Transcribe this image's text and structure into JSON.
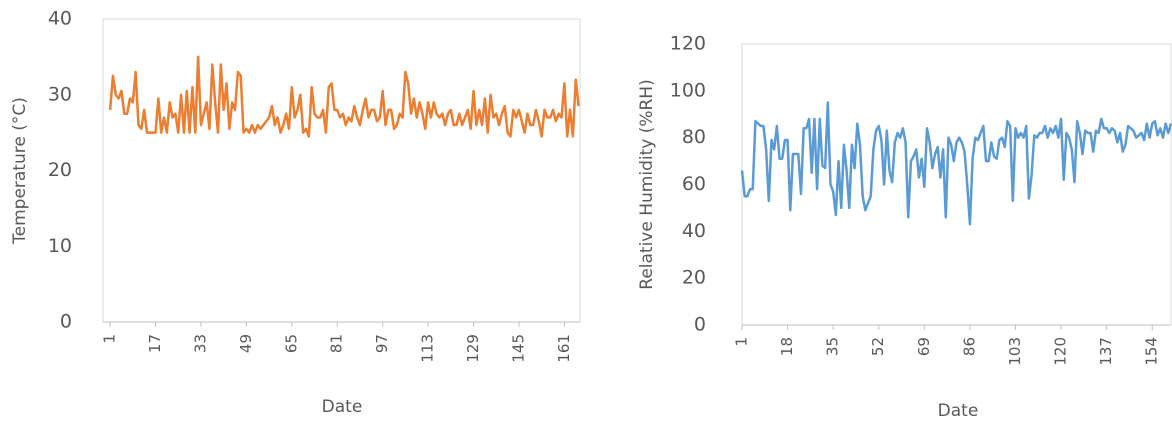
{
  "chart_data": [
    {
      "type": "line",
      "y_label": "Temperature (°C)",
      "x_label": "Date",
      "xlim": [
        -1.5,
        166.5
      ],
      "xticks": [
        1,
        17,
        33,
        49,
        65,
        81,
        97,
        113,
        129,
        145,
        161
      ],
      "ylim": [
        0,
        40
      ],
      "yticks": [
        0,
        10,
        20,
        30,
        40
      ],
      "x": [
        1,
        2,
        3,
        4,
        5,
        6,
        7,
        8,
        9,
        10,
        11,
        12,
        13,
        14,
        15,
        16,
        17,
        18,
        19,
        20,
        21,
        22,
        23,
        24,
        25,
        26,
        27,
        28,
        29,
        30,
        31,
        32,
        33,
        34,
        35,
        36,
        37,
        38,
        39,
        40,
        41,
        42,
        43,
        44,
        45,
        46,
        47,
        48,
        49,
        50,
        51,
        52,
        53,
        54,
        55,
        56,
        57,
        58,
        59,
        60,
        61,
        62,
        63,
        64,
        65,
        66,
        67,
        68,
        69,
        70,
        71,
        72,
        73,
        74,
        75,
        76,
        77,
        78,
        79,
        80,
        81,
        82,
        83,
        84,
        85,
        86,
        87,
        88,
        89,
        90,
        91,
        92,
        93,
        94,
        95,
        96,
        97,
        98,
        99,
        100,
        101,
        102,
        103,
        104,
        105,
        106,
        107,
        108,
        109,
        110,
        111,
        112,
        113,
        114,
        115,
        116,
        117,
        118,
        119,
        120,
        121,
        122,
        123,
        124,
        125,
        126,
        127,
        128,
        129,
        130,
        131,
        132,
        133,
        134,
        135,
        136,
        137,
        138,
        139,
        140,
        141,
        142,
        143,
        144,
        145,
        146,
        147,
        148,
        149,
        150,
        151,
        152,
        153,
        154,
        155,
        156,
        157,
        158,
        159,
        160,
        161,
        162,
        163,
        164,
        165,
        166
      ],
      "series": [
        {
          "color": "#ed7d31",
          "values": [
            28,
            32.5,
            30,
            29.5,
            30.5,
            27.5,
            27.5,
            29.5,
            29,
            33,
            26,
            25.5,
            28,
            25,
            25,
            25,
            25,
            29.5,
            25,
            27,
            25,
            29,
            27,
            27.5,
            25,
            30,
            25,
            30.5,
            25,
            31,
            25,
            35,
            26,
            27.5,
            29,
            25.5,
            34,
            29,
            25,
            34,
            28,
            31.5,
            25.5,
            29,
            28,
            33,
            32.5,
            25,
            25.5,
            25,
            26,
            25,
            26,
            25.5,
            26,
            26.5,
            27,
            28.5,
            26,
            27,
            25,
            26,
            27.5,
            25.5,
            31,
            27,
            28,
            30,
            25,
            25.5,
            24.5,
            31,
            27.5,
            27,
            27,
            28,
            25,
            31,
            31.5,
            28,
            28,
            27,
            27.5,
            26,
            27,
            26.5,
            28.5,
            27,
            26,
            28,
            29.5,
            27,
            28,
            28,
            26.5,
            27,
            30.5,
            26,
            28,
            28,
            25.5,
            26,
            27.5,
            27,
            33,
            31.5,
            27.5,
            29.5,
            27,
            29,
            27.5,
            25.5,
            29,
            27,
            29,
            27.5,
            27,
            27.5,
            26,
            27.5,
            28,
            26,
            26,
            27.5,
            26,
            27,
            28,
            25.5,
            30.5,
            26,
            28,
            26,
            29.5,
            25,
            30,
            27,
            27.5,
            26,
            27.5,
            28.5,
            25,
            24.5,
            28,
            27,
            28,
            26.5,
            25,
            27.5,
            26,
            26,
            28,
            26.5,
            24.5,
            28,
            27,
            27,
            28,
            26.5,
            27.5,
            27,
            31.5,
            24.5,
            28,
            24.5,
            32,
            28.5
          ]
        }
      ]
    },
    {
      "type": "line",
      "y_label": "Relative Humidity (%RH)",
      "x_label": "Date",
      "xlim": [
        1,
        161
      ],
      "xticks": [
        1,
        18,
        35,
        52,
        69,
        86,
        103,
        120,
        137,
        154
      ],
      "ylim": [
        0,
        120
      ],
      "yticks": [
        0,
        20,
        40,
        60,
        80,
        100,
        120
      ],
      "x": [
        1,
        2,
        3,
        4,
        5,
        6,
        7,
        8,
        9,
        10,
        11,
        12,
        13,
        14,
        15,
        16,
        17,
        18,
        19,
        20,
        21,
        22,
        23,
        24,
        25,
        26,
        27,
        28,
        29,
        30,
        31,
        32,
        33,
        34,
        35,
        36,
        37,
        38,
        39,
        40,
        41,
        42,
        43,
        44,
        45,
        46,
        47,
        48,
        49,
        50,
        51,
        52,
        53,
        54,
        55,
        56,
        57,
        58,
        59,
        60,
        61,
        62,
        63,
        64,
        65,
        66,
        67,
        68,
        69,
        70,
        71,
        72,
        73,
        74,
        75,
        76,
        77,
        78,
        79,
        80,
        81,
        82,
        83,
        84,
        85,
        86,
        87,
        88,
        89,
        90,
        91,
        92,
        93,
        94,
        95,
        96,
        97,
        98,
        99,
        100,
        101,
        102,
        103,
        104,
        105,
        106,
        107,
        108,
        109,
        110,
        111,
        112,
        113,
        114,
        115,
        116,
        117,
        118,
        119,
        120,
        121,
        122,
        123,
        124,
        125,
        126,
        127,
        128,
        129,
        130,
        131,
        132,
        133,
        134,
        135,
        136,
        137,
        138,
        139,
        140,
        141,
        142,
        143,
        144,
        145,
        146,
        147,
        148,
        149,
        150,
        151,
        152,
        153,
        154,
        155,
        156,
        157,
        158,
        159,
        160,
        161
      ],
      "series": [
        {
          "color": "#5b9bd5",
          "values": [
            66,
            55,
            55,
            58,
            58,
            87,
            86,
            85,
            85,
            75,
            53,
            79,
            75,
            85,
            71,
            71,
            79,
            79,
            49,
            73,
            73,
            73,
            56,
            84,
            84,
            88,
            65,
            88,
            58,
            88,
            68,
            67,
            95,
            60,
            57,
            47,
            70,
            50,
            77,
            66,
            50,
            77,
            67,
            86,
            77,
            55,
            49,
            52,
            55,
            75,
            83,
            85,
            79,
            60,
            83,
            66,
            61,
            78,
            82,
            80,
            84,
            78,
            46,
            70,
            72,
            75,
            63,
            71,
            59,
            84,
            78,
            67,
            73,
            76,
            63,
            75,
            46,
            80,
            77,
            70,
            78,
            80,
            78,
            74,
            60,
            43,
            71,
            80,
            79,
            82,
            85,
            70,
            70,
            78,
            72,
            71,
            79,
            80,
            76,
            87,
            85,
            53,
            84,
            80,
            82,
            80,
            85,
            54,
            64,
            81,
            80,
            82,
            82,
            85,
            80,
            84,
            82,
            85,
            80,
            88,
            62,
            82,
            80,
            75,
            61,
            87,
            82,
            73,
            83,
            82,
            82,
            74,
            83,
            82,
            88,
            84,
            84,
            82,
            84,
            83,
            78,
            82,
            74,
            77,
            85,
            84,
            83,
            80,
            81,
            82,
            79,
            86,
            80,
            86,
            87,
            81,
            84,
            80,
            86,
            82,
            86
          ]
        }
      ]
    }
  ]
}
